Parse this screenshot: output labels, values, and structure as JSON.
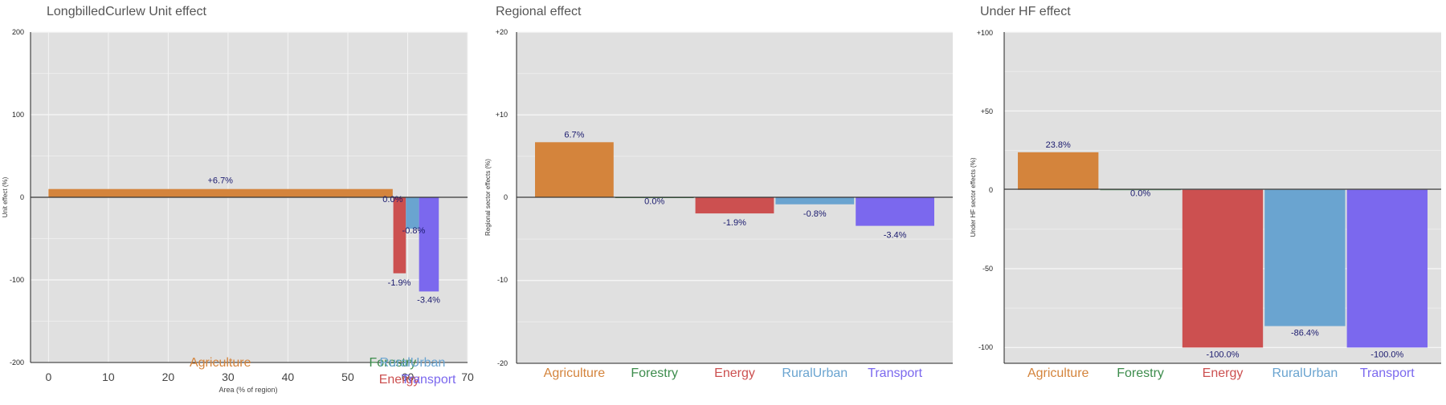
{
  "colors": {
    "Agriculture": "#D4843C",
    "Forestry": "#3C8C4C",
    "Energy": "#CC5050",
    "RuralUrban": "#6AA4D0",
    "Transport": "#7B68EE",
    "panel_bg": "#E0E0E0",
    "label": "#1a1a6e"
  },
  "chart_data": [
    {
      "type": "bar",
      "variant": "variable-width",
      "title": "LongbilledCurlew Unit effect",
      "xlabel": "Area (% of region)",
      "ylabel": "Unit effect (%)",
      "xlim": [
        -3,
        70
      ],
      "ylim": [
        -200,
        200
      ],
      "xticks": [
        "0",
        "10",
        "20",
        "30",
        "40",
        "50",
        "60",
        "70"
      ],
      "yticks": [
        "200",
        "100",
        "0",
        "-100",
        "-200"
      ],
      "categories": [
        "Agriculture",
        "Forestry",
        "Energy",
        "RuralUrban",
        "Transport"
      ],
      "bars": [
        {
          "sector": "Agriculture",
          "x0": 0,
          "x1": 57.5,
          "value": 10,
          "label": "+6.7%"
        },
        {
          "sector": "Forestry",
          "x0": 57.5,
          "x1": 57.6,
          "value": 0,
          "label": "0.0%"
        },
        {
          "sector": "Energy",
          "x0": 57.6,
          "x1": 59.7,
          "value": -92,
          "label": "-1.9%"
        },
        {
          "sector": "RuralUrban",
          "x0": 59.7,
          "x1": 61.9,
          "value": -38,
          "label": "-0.8%"
        },
        {
          "sector": "Transport",
          "x0": 61.9,
          "x1": 65.2,
          "value": -114,
          "label": "-3.4%"
        }
      ],
      "sector_labels": [
        {
          "name": "Agriculture",
          "x": 28.7,
          "row": 0
        },
        {
          "name": "Forestry",
          "x": 57.5,
          "row": 0
        },
        {
          "name": "RuralUrban",
          "x": 60.8,
          "row": 0
        },
        {
          "name": "Energy",
          "x": 58.6,
          "row": 1
        },
        {
          "name": "Transport",
          "x": 63.5,
          "row": 1
        }
      ]
    },
    {
      "type": "bar",
      "title": "Regional effect",
      "xlabel": "",
      "ylabel": "Regional sector effects (%)",
      "ylim": [
        -20,
        20
      ],
      "yticks": [
        "+20",
        "+10",
        "0",
        "-10",
        "-20"
      ],
      "categories": [
        "Agriculture",
        "Forestry",
        "Energy",
        "RuralUrban",
        "Transport"
      ],
      "values": [
        6.7,
        0.0,
        -1.9,
        -0.8,
        -3.4
      ],
      "labels": [
        "6.7%",
        "0.0%",
        "-1.9%",
        "-0.8%",
        "-3.4%"
      ]
    },
    {
      "type": "bar",
      "title": "Under HF effect",
      "xlabel": "",
      "ylabel": "Under HF sector effects (%)",
      "ylim": [
        -110,
        100
      ],
      "yticks": [
        "+100",
        "+50",
        "0",
        "-50",
        "-100"
      ],
      "categories": [
        "Agriculture",
        "Forestry",
        "Energy",
        "RuralUrban",
        "Transport"
      ],
      "values": [
        23.8,
        0.0,
        -100.0,
        -86.4,
        -100.0
      ],
      "labels": [
        "23.8%",
        "0.0%",
        "-100.0%",
        "-86.4%",
        "-100.0%"
      ]
    }
  ]
}
